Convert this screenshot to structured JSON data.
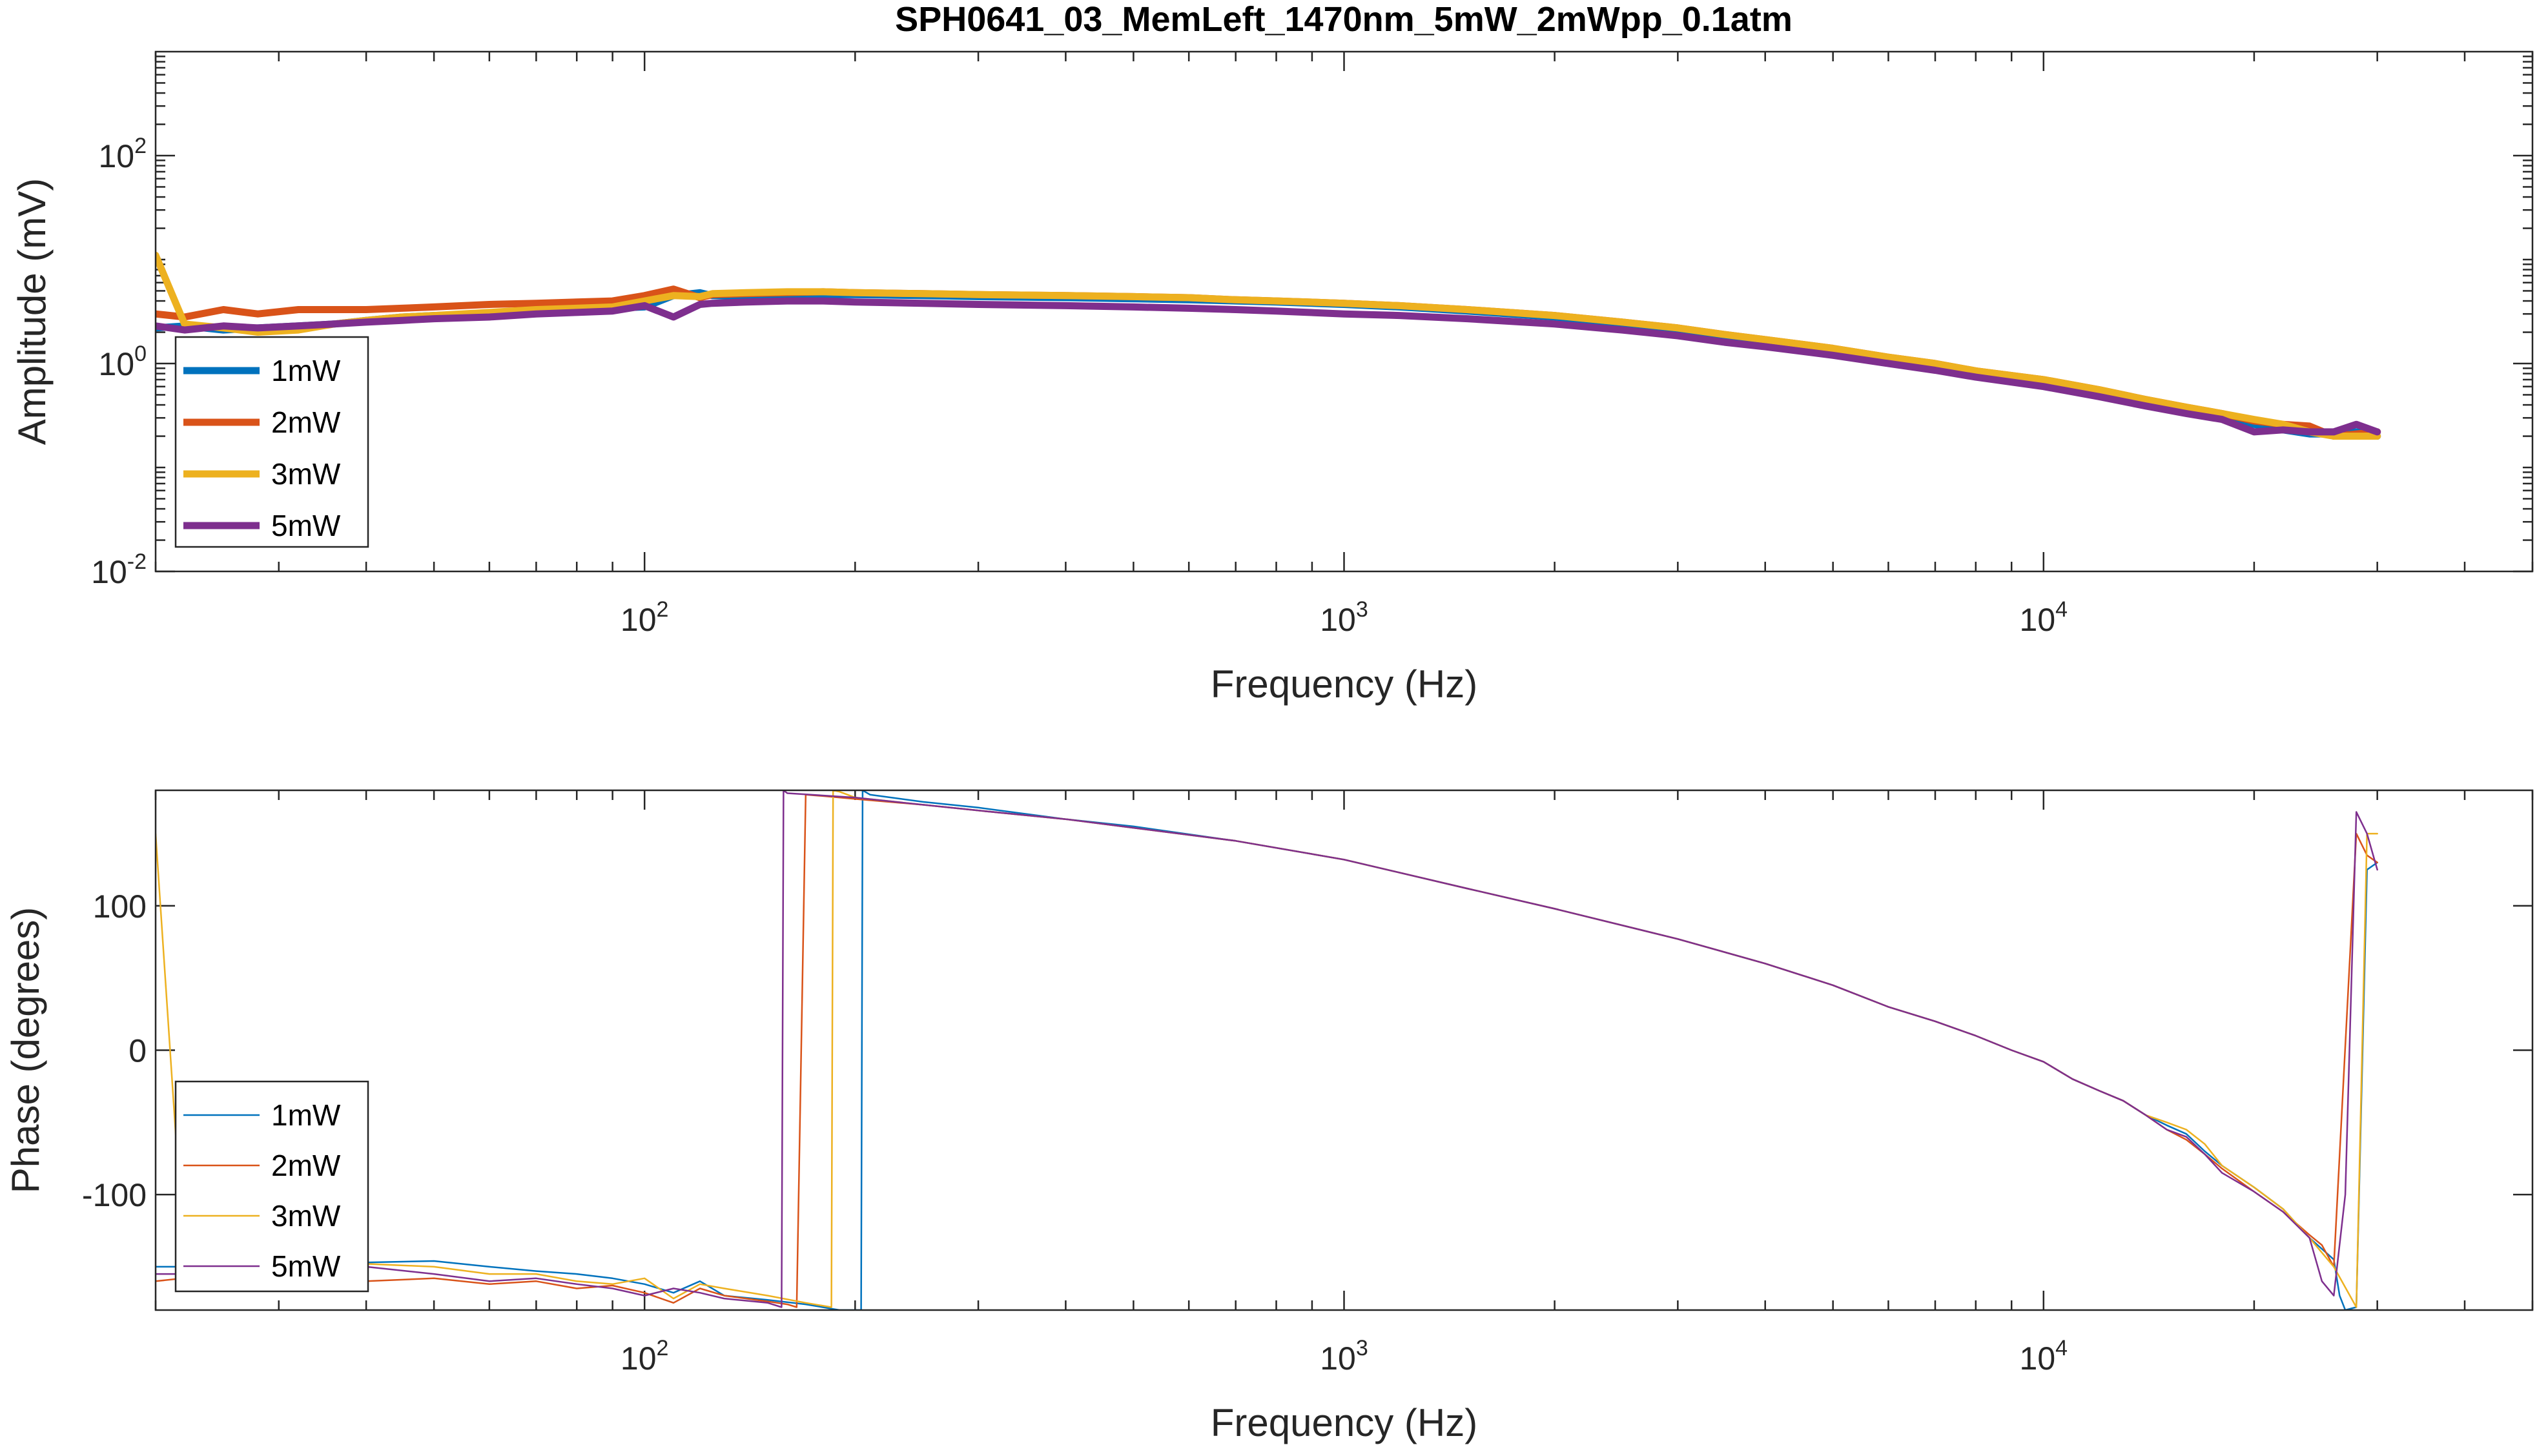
{
  "figure_title": "SPH0641_03_MemLeft_1470nm_5mW_2mWpp_0.1atm",
  "colors": {
    "1mW": "#0072BD",
    "2mW": "#D95319",
    "3mW": "#EDB120",
    "5mW": "#7E2F8E"
  },
  "chart_data": [
    {
      "type": "line",
      "title": "SPH0641_03_MemLeft_1470nm_5mW_2mWpp_0.1atm",
      "xlabel": "Frequency (Hz)",
      "ylabel": "Amplitude (mV)",
      "xscale": "log",
      "yscale": "log",
      "xlim": [
        20,
        50000
      ],
      "ylim": [
        0.01,
        1000
      ],
      "xticks": [
        {
          "value": 100,
          "base": "10",
          "exp": "2"
        },
        {
          "value": 1000,
          "base": "10",
          "exp": "3"
        },
        {
          "value": 10000,
          "base": "10",
          "exp": "4"
        }
      ],
      "yticks": [
        {
          "value": 0.01,
          "base": "10",
          "exp": "-2"
        },
        {
          "value": 1,
          "base": "10",
          "exp": "0"
        },
        {
          "value": 100,
          "base": "10",
          "exp": "2"
        }
      ],
      "legend_location": "lower-left",
      "legend_line": "thick",
      "series": [
        {
          "name": "1mW",
          "x": [
            20,
            22,
            25,
            28,
            32,
            36,
            40,
            45,
            50,
            60,
            70,
            80,
            90,
            100,
            110,
            120,
            125,
            140,
            160,
            180,
            200,
            250,
            300,
            400,
            500,
            600,
            700,
            800,
            1000,
            1200,
            1500,
            2000,
            2500,
            3000,
            3500,
            4000,
            5000,
            6000,
            7000,
            8000,
            10000,
            12000,
            14000,
            16000,
            18000,
            20000,
            22000,
            24000,
            26000,
            28000,
            30000
          ],
          "y": [
            2.2,
            2.3,
            2.1,
            2.2,
            2.3,
            2.4,
            2.6,
            2.8,
            2.9,
            3.0,
            3.2,
            3.3,
            3.4,
            3.5,
            4.5,
            4.8,
            4.5,
            4.4,
            4.5,
            4.6,
            4.6,
            4.5,
            4.4,
            4.3,
            4.2,
            4.1,
            4.0,
            3.9,
            3.7,
            3.5,
            3.2,
            2.8,
            2.4,
            2.1,
            1.85,
            1.65,
            1.35,
            1.1,
            0.95,
            0.82,
            0.66,
            0.52,
            0.42,
            0.36,
            0.3,
            0.26,
            0.23,
            0.21,
            0.21,
            0.22,
            0.2
          ]
        },
        {
          "name": "2mW",
          "x": [
            20,
            22,
            25,
            28,
            32,
            36,
            40,
            45,
            50,
            60,
            70,
            80,
            90,
            100,
            110,
            120,
            125,
            140,
            160,
            180,
            200,
            250,
            300,
            400,
            500,
            600,
            700,
            800,
            1000,
            1200,
            1500,
            2000,
            2500,
            3000,
            3500,
            4000,
            5000,
            6000,
            7000,
            8000,
            10000,
            12000,
            14000,
            16000,
            18000,
            20000,
            22000,
            24000,
            26000,
            28000,
            30000
          ],
          "y": [
            3.0,
            2.8,
            3.3,
            3.0,
            3.3,
            3.3,
            3.3,
            3.4,
            3.5,
            3.7,
            3.8,
            3.9,
            4.0,
            4.5,
            5.2,
            4.3,
            4.6,
            4.7,
            4.8,
            4.9,
            4.8,
            4.7,
            4.6,
            4.5,
            4.4,
            4.3,
            4.1,
            4.0,
            3.8,
            3.6,
            3.3,
            2.9,
            2.5,
            2.2,
            1.9,
            1.7,
            1.4,
            1.15,
            1.0,
            0.85,
            0.7,
            0.56,
            0.45,
            0.38,
            0.33,
            0.28,
            0.26,
            0.25,
            0.2,
            0.21,
            0.22
          ]
        },
        {
          "name": "3mW",
          "x": [
            20,
            22,
            25,
            28,
            32,
            36,
            40,
            45,
            50,
            60,
            70,
            80,
            90,
            100,
            110,
            120,
            125,
            140,
            160,
            180,
            200,
            250,
            300,
            400,
            500,
            600,
            700,
            800,
            1000,
            1200,
            1500,
            2000,
            2500,
            3000,
            3500,
            4000,
            5000,
            6000,
            7000,
            8000,
            10000,
            12000,
            14000,
            16000,
            18000,
            20000,
            22000,
            24000,
            26000,
            28000,
            30000
          ],
          "y": [
            11,
            2.4,
            2.2,
            2.0,
            2.1,
            2.4,
            2.6,
            2.8,
            2.9,
            3.1,
            3.3,
            3.4,
            3.5,
            4.0,
            4.5,
            4.4,
            4.7,
            4.8,
            4.9,
            4.9,
            4.8,
            4.7,
            4.6,
            4.5,
            4.4,
            4.3,
            4.1,
            4.0,
            3.8,
            3.6,
            3.3,
            2.9,
            2.5,
            2.2,
            1.9,
            1.7,
            1.4,
            1.15,
            1.0,
            0.85,
            0.7,
            0.56,
            0.45,
            0.38,
            0.33,
            0.29,
            0.26,
            0.22,
            0.2,
            0.2,
            0.2
          ]
        },
        {
          "name": "5mW",
          "x": [
            20,
            22,
            25,
            28,
            32,
            36,
            40,
            45,
            50,
            60,
            70,
            80,
            90,
            100,
            110,
            120,
            125,
            140,
            160,
            180,
            200,
            250,
            300,
            400,
            500,
            600,
            700,
            800,
            1000,
            1200,
            1500,
            2000,
            2500,
            3000,
            3500,
            4000,
            5000,
            6000,
            7000,
            8000,
            10000,
            12000,
            14000,
            16000,
            18000,
            20000,
            22000,
            24000,
            26000,
            28000,
            30000
          ],
          "y": [
            2.3,
            2.1,
            2.3,
            2.2,
            2.3,
            2.4,
            2.5,
            2.6,
            2.7,
            2.8,
            3.0,
            3.1,
            3.2,
            3.6,
            2.8,
            3.7,
            3.8,
            3.9,
            4.0,
            4.0,
            3.9,
            3.8,
            3.7,
            3.6,
            3.5,
            3.4,
            3.3,
            3.2,
            3.0,
            2.9,
            2.7,
            2.4,
            2.1,
            1.85,
            1.6,
            1.45,
            1.2,
            1.0,
            0.86,
            0.74,
            0.6,
            0.48,
            0.39,
            0.33,
            0.29,
            0.22,
            0.23,
            0.22,
            0.22,
            0.26,
            0.22
          ]
        }
      ]
    },
    {
      "type": "line",
      "xlabel": "Frequency (Hz)",
      "ylabel": "Phase (degrees)",
      "xscale": "log",
      "yscale": "linear",
      "xlim": [
        20,
        50000
      ],
      "ylim": [
        -180,
        180
      ],
      "xticks": [
        {
          "value": 100,
          "base": "10",
          "exp": "2"
        },
        {
          "value": 1000,
          "base": "10",
          "exp": "3"
        },
        {
          "value": 10000,
          "base": "10",
          "exp": "4"
        }
      ],
      "yticks": [
        {
          "value": 100,
          "label": "100"
        },
        {
          "value": 0,
          "label": "0"
        },
        {
          "value": -100,
          "label": "-100"
        }
      ],
      "legend_location": "lower-left",
      "legend_line": "thin",
      "series": [
        {
          "name": "1mW",
          "x": [
            20,
            25,
            30,
            40,
            50,
            60,
            70,
            80,
            90,
            100,
            110,
            120,
            130,
            150,
            170,
            190,
            204,
            205,
            210,
            250,
            300,
            400,
            500,
            700,
            1000,
            1500,
            2000,
            3000,
            4000,
            5000,
            6000,
            7000,
            8000,
            9000,
            10000,
            11000,
            12000,
            13000,
            14000,
            15000,
            16000,
            17000,
            18000,
            20000,
            22000,
            24000,
            26000,
            26500,
            27000,
            28000,
            29000,
            30000
          ],
          "y": [
            -150,
            -150,
            -148,
            -147,
            -146,
            -150,
            -153,
            -155,
            -158,
            -162,
            -168,
            -160,
            -170,
            -173,
            -176,
            -180,
            -180,
            180,
            177,
            172,
            168,
            160,
            155,
            145,
            132,
            112,
            98,
            77,
            60,
            45,
            30,
            20,
            10,
            0,
            -8,
            -20,
            -28,
            -35,
            -45,
            -52,
            -58,
            -70,
            -80,
            -95,
            -110,
            -130,
            -145,
            -170,
            -180,
            -178,
            125,
            130
          ]
        },
        {
          "name": "2mW",
          "x": [
            20,
            25,
            30,
            40,
            50,
            60,
            70,
            80,
            90,
            100,
            110,
            120,
            130,
            150,
            160,
            165,
            170,
            180,
            200,
            250,
            300,
            400,
            500,
            700,
            1000,
            1500,
            2000,
            3000,
            4000,
            5000,
            6000,
            7000,
            8000,
            9000,
            10000,
            11000,
            12000,
            13000,
            14000,
            15000,
            16000,
            17000,
            18000,
            20000,
            22000,
            24000,
            25000,
            26000,
            28000,
            29000,
            30000
          ],
          "y": [
            -160,
            -155,
            -158,
            -160,
            -158,
            -162,
            -160,
            -165,
            -163,
            -168,
            -175,
            -165,
            -170,
            -174,
            -176,
            -178,
            177,
            176,
            174,
            170,
            166,
            160,
            154,
            145,
            132,
            112,
            98,
            77,
            60,
            45,
            30,
            20,
            10,
            0,
            -8,
            -20,
            -28,
            -35,
            -45,
            -55,
            -62,
            -72,
            -82,
            -98,
            -112,
            -128,
            -135,
            -150,
            150,
            135,
            130
          ]
        },
        {
          "name": "3mW",
          "x": [
            20,
            22,
            25,
            30,
            40,
            50,
            60,
            70,
            80,
            90,
            100,
            110,
            120,
            130,
            150,
            170,
            185,
            186,
            190,
            200,
            250,
            300,
            400,
            500,
            700,
            1000,
            1500,
            2000,
            3000,
            4000,
            5000,
            6000,
            7000,
            8000,
            9000,
            10000,
            11000,
            12000,
            13000,
            14000,
            15000,
            16000,
            17000,
            18000,
            20000,
            22000,
            24000,
            26000,
            28000,
            29000,
            30000
          ],
          "y": [
            150,
            -150,
            -145,
            -150,
            -148,
            -150,
            -155,
            -155,
            -160,
            -162,
            -158,
            -172,
            -162,
            -165,
            -170,
            -175,
            -178,
            180,
            179,
            175,
            170,
            166,
            160,
            154,
            145,
            132,
            112,
            98,
            77,
            60,
            45,
            30,
            20,
            10,
            0,
            -8,
            -20,
            -28,
            -35,
            -45,
            -50,
            -55,
            -65,
            -80,
            -95,
            -110,
            -130,
            -150,
            -178,
            150,
            150
          ]
        },
        {
          "name": "5mW",
          "x": [
            20,
            25,
            30,
            40,
            50,
            60,
            70,
            80,
            90,
            100,
            110,
            120,
            130,
            150,
            157,
            158,
            160,
            200,
            250,
            300,
            400,
            500,
            700,
            1000,
            1500,
            2000,
            3000,
            4000,
            5000,
            6000,
            7000,
            8000,
            9000,
            10000,
            11000,
            12000,
            13000,
            14000,
            15000,
            16000,
            17000,
            18000,
            20000,
            22000,
            24000,
            25000,
            26000,
            27000,
            28000,
            29000,
            30000
          ],
          "y": [
            -155,
            -155,
            -150,
            -150,
            -155,
            -160,
            -158,
            -162,
            -165,
            -170,
            -165,
            -168,
            -172,
            -175,
            -178,
            180,
            178,
            175,
            170,
            166,
            160,
            154,
            145,
            132,
            112,
            98,
            77,
            60,
            45,
            30,
            20,
            10,
            0,
            -8,
            -20,
            -28,
            -35,
            -45,
            -55,
            -60,
            -72,
            -85,
            -98,
            -112,
            -130,
            -160,
            -170,
            -100,
            165,
            150,
            125
          ]
        }
      ]
    }
  ]
}
